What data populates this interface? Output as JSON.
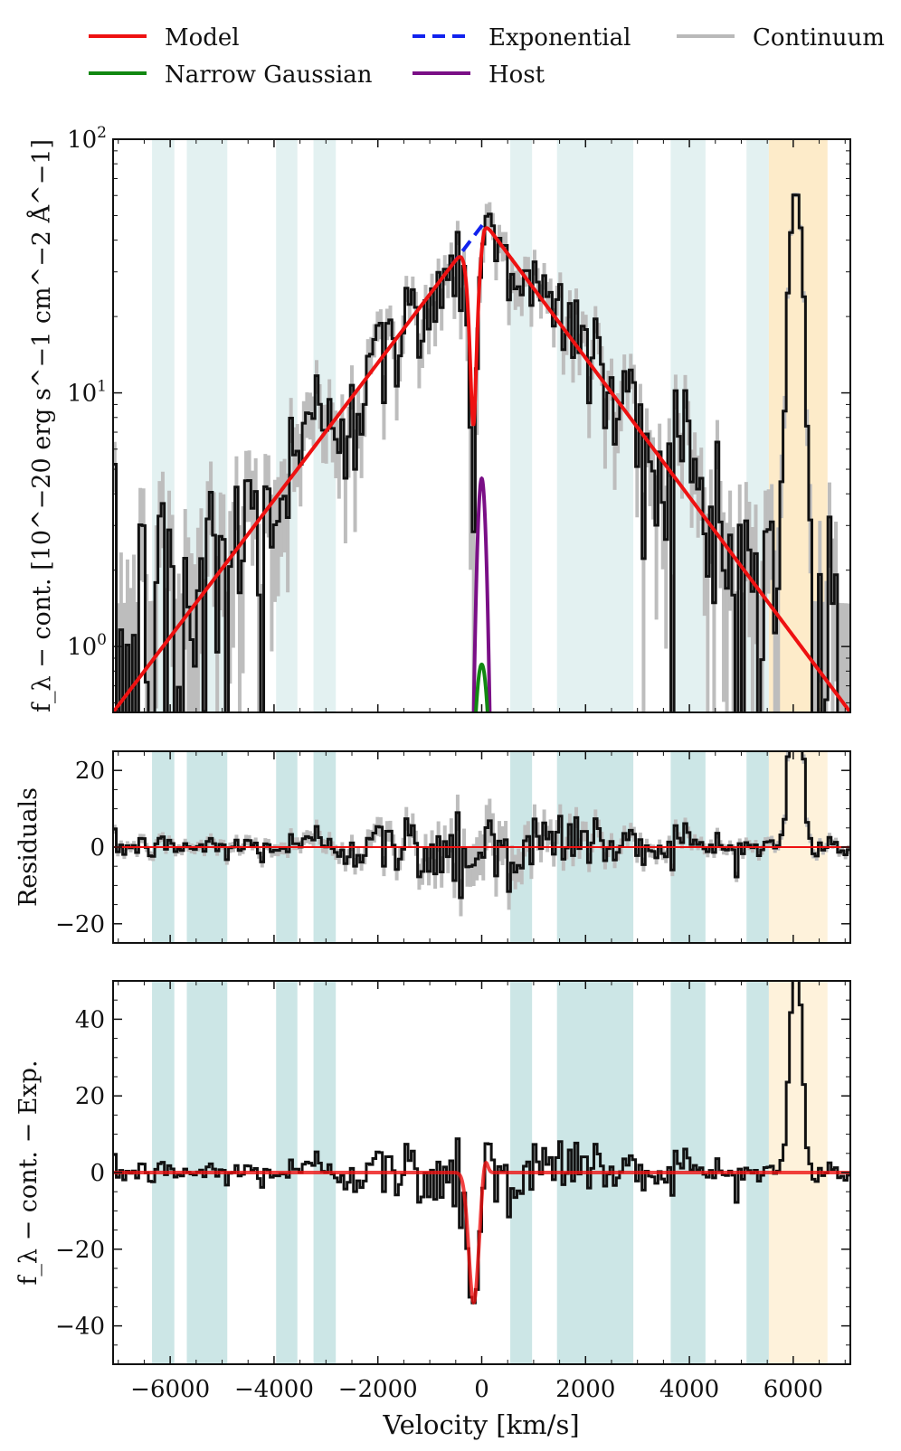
{
  "legend": [
    {
      "label": "Model",
      "color": "#ee1111",
      "style": "solid"
    },
    {
      "label": "Exponential",
      "color": "#1122ee",
      "style": "dashed"
    },
    {
      "label": "Continuum",
      "color": "#b9b9b9",
      "style": "solid"
    },
    {
      "label": "Narrow Gaussian",
      "color": "#118811",
      "style": "solid"
    },
    {
      "label": "Host",
      "color": "#7a0f86",
      "style": "solid"
    }
  ],
  "colors": {
    "shade_teal": "#c7e3e3",
    "shade_orange": "#fde9c3",
    "data": "#111111",
    "error": "#bdbdbd"
  },
  "xaxis": {
    "label": "Velocity [km/s]",
    "ticks": [
      "−6000",
      "−4000",
      "−2000",
      "0",
      "2000",
      "4000",
      "6000"
    ]
  },
  "chart_data": [
    {
      "type": "line",
      "title": "",
      "ylabel": "f_λ − cont. [10^−20 erg s^−1 cm^−2 Å^−1]",
      "yscale": "log",
      "xlim": [
        -7100,
        7100
      ],
      "ylim": [
        0.55,
        100
      ],
      "ytick_labels": [
        "10^0",
        "10^1",
        "10^2"
      ],
      "shaded_regions_kms": [
        [
          -6350,
          -5920
        ],
        [
          -5680,
          -4900
        ],
        [
          -3960,
          -3550
        ],
        [
          -3240,
          -2810
        ],
        [
          550,
          970
        ],
        [
          1450,
          2920
        ],
        [
          3640,
          4310
        ],
        [
          5100,
          5530
        ]
      ],
      "highlight_region_kms": [
        5530,
        6660
      ],
      "series": [
        {
          "name": "Model",
          "x": [
            -7100,
            -600,
            -150,
            50,
            7100
          ],
          "y": [
            0.55,
            30,
            8,
            47,
            0.55
          ]
        },
        {
          "name": "Exponential",
          "x": [
            -600,
            50
          ],
          "y": [
            30,
            47
          ]
        },
        {
          "name": "Host",
          "peak_x": 0,
          "peak_y": 4.6,
          "sigma_kms": 75
        },
        {
          "name": "Narrow Gaussian",
          "peak_x": 0,
          "peak_y": 0.85,
          "sigma_kms": 120
        },
        {
          "name": "Data peak",
          "x": 6050,
          "y": 62
        }
      ]
    },
    {
      "type": "line",
      "ylabel": "Residuals",
      "yscale": "linear",
      "xlim": [
        -7100,
        7100
      ],
      "ylim": [
        -25,
        25
      ],
      "ytick_labels": [
        "20",
        "0",
        "−20"
      ],
      "series": [
        {
          "name": "Zero model",
          "value": 0
        },
        {
          "name": "Residual peak",
          "x": 6050,
          "y": 25
        }
      ]
    },
    {
      "type": "line",
      "ylabel": "f_λ − cont. − Exp.",
      "yscale": "linear",
      "xlim": [
        -7100,
        7100
      ],
      "ylim": [
        -50,
        50
      ],
      "ytick_labels": [
        "40",
        "20",
        "0",
        "−20",
        "−40"
      ],
      "series": [
        {
          "name": "Absorption model",
          "x": [
            -600,
            -300,
            -150,
            0,
            50,
            300
          ],
          "y": [
            0,
            -22,
            -32,
            0,
            4,
            0
          ]
        },
        {
          "name": "Data minimum",
          "x": -150,
          "y": -34
        },
        {
          "name": "Emission peak",
          "x": 6050,
          "y": 50
        }
      ]
    }
  ]
}
